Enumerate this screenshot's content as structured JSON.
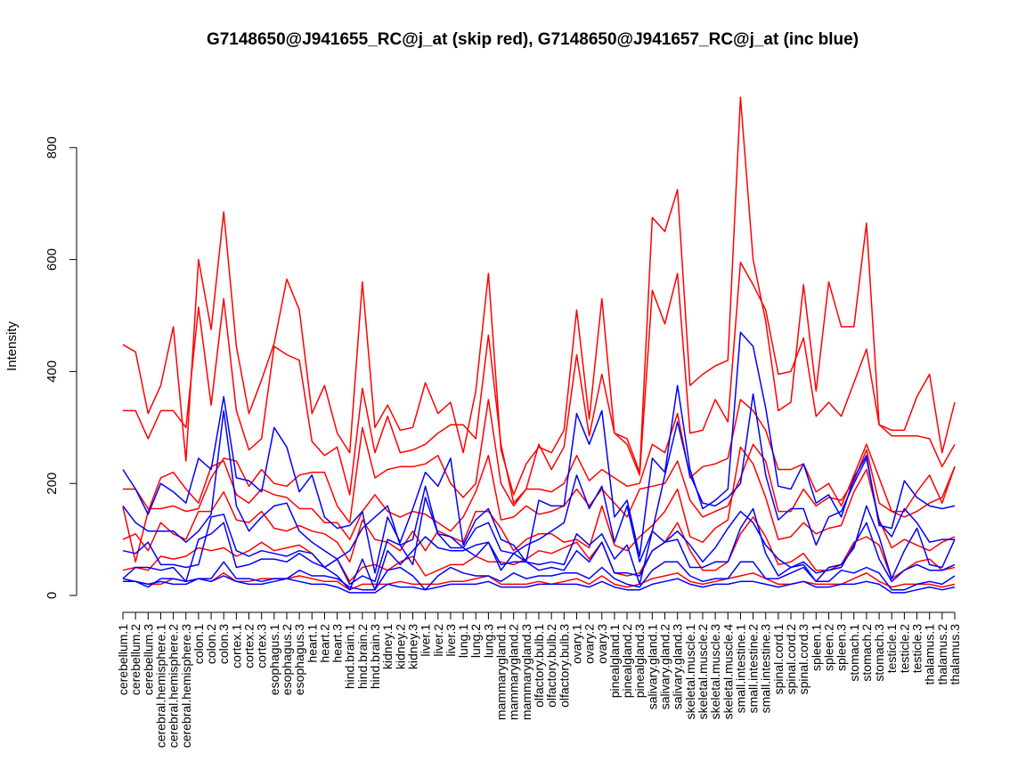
{
  "chart_data": {
    "type": "line",
    "title": "G7148650@J941655_RC@j_at (skip red), G7148650@J941657_RC@j_at (inc blue)",
    "xlabel": "",
    "ylabel": "Intensity",
    "ylim": [
      0,
      900
    ],
    "yticks": [
      0,
      200,
      400,
      600,
      800
    ],
    "grid": false,
    "legend": "none",
    "colors": {
      "skip": "#ff0000",
      "inc": "#0000ff"
    },
    "categories": [
      "cerebellum.1",
      "cerebellum.2",
      "cerebellum.3",
      "cerebral.hemisphere.1",
      "cerebral.hemisphere.2",
      "cerebral.hemisphere.3",
      "colon.1",
      "colon.2",
      "colon.3",
      "cortex.1",
      "cortex.2",
      "cortex.3",
      "esophagus.1",
      "esophagus.2",
      "esophagus.3",
      "heart.1",
      "heart.2",
      "heart.3",
      "hind.brain.1",
      "hind.brain.2",
      "hind.brain.3",
      "kidney.1",
      "kidney.2",
      "kidney.3",
      "liver.1",
      "liver.2",
      "liver.3",
      "lung.1",
      "lung.2",
      "lung.3",
      "mammarygland.1",
      "mammarygland.2",
      "mammarygland.3",
      "olfactory.bulb.1",
      "olfactory.bulb.2",
      "olfactory.bulb.3",
      "ovary.1",
      "ovary.2",
      "ovary.3",
      "pinealgland.1",
      "pinealgland.2",
      "pinealgland.3",
      "salivary.gland.1",
      "salivary.gland.2",
      "salivary.gland.3",
      "skeletal.muscle.1",
      "skeletal.muscle.2",
      "skeletal.muscle.3",
      "skeletal.muscle.4",
      "small.intestine.1",
      "small.intestine.2",
      "small.intestine.3",
      "spinal.cord.1",
      "spinal.cord.2",
      "spinal.cord.3",
      "spleen.1",
      "spleen.2",
      "spleen.3",
      "stomach.1",
      "stomach.2",
      "stomach.3",
      "testicle.1",
      "testicle.2",
      "testicle.3",
      "thalamus.1",
      "thalamus.2",
      "thalamus.3"
    ],
    "series": [
      {
        "group": "skip",
        "values": [
          448,
          435,
          325,
          375,
          480,
          240,
          600,
          475,
          685,
          445,
          325,
          385,
          450,
          565,
          510,
          325,
          375,
          290,
          255,
          560,
          300,
          340,
          295,
          300,
          380,
          325,
          345,
          255,
          365,
          575,
          260,
          180,
          235,
          265,
          255,
          295,
          510,
          315,
          530,
          290,
          280,
          220,
          675,
          650,
          725,
          375,
          395,
          410,
          420,
          890,
          600,
          490,
          330,
          345,
          555,
          365,
          560,
          480,
          480,
          665,
          305,
          295,
          295,
          355,
          395,
          255,
          345
        ]
      },
      {
        "group": "skip",
        "values": [
          330,
          330,
          280,
          330,
          330,
          300,
          515,
          340,
          530,
          330,
          260,
          280,
          445,
          430,
          420,
          275,
          250,
          265,
          180,
          370,
          255,
          320,
          255,
          260,
          270,
          290,
          305,
          305,
          280,
          465,
          270,
          165,
          190,
          270,
          225,
          265,
          430,
          285,
          395,
          290,
          270,
          215,
          545,
          485,
          575,
          290,
          295,
          350,
          310,
          595,
          555,
          510,
          395,
          400,
          460,
          320,
          345,
          320,
          380,
          440,
          305,
          285,
          285,
          285,
          280,
          230,
          270
        ]
      },
      {
        "group": "skip",
        "values": [
          190,
          190,
          155,
          155,
          160,
          150,
          155,
          210,
          245,
          240,
          195,
          225,
          200,
          195,
          215,
          220,
          220,
          160,
          130,
          300,
          210,
          225,
          230,
          230,
          235,
          250,
          200,
          175,
          200,
          350,
          200,
          160,
          190,
          190,
          185,
          200,
          250,
          205,
          225,
          210,
          195,
          200,
          270,
          255,
          325,
          210,
          230,
          235,
          245,
          350,
          330,
          295,
          225,
          225,
          235,
          185,
          200,
          160,
          215,
          270,
          210,
          150,
          150,
          185,
          215,
          165,
          230
        ]
      },
      {
        "group": "skip",
        "values": [
          158,
          60,
          150,
          210,
          220,
          190,
          165,
          230,
          240,
          180,
          165,
          190,
          180,
          175,
          155,
          155,
          130,
          130,
          100,
          150,
          180,
          150,
          140,
          150,
          145,
          130,
          115,
          140,
          185,
          250,
          135,
          140,
          160,
          145,
          150,
          160,
          190,
          160,
          190,
          165,
          140,
          190,
          195,
          200,
          240,
          170,
          140,
          150,
          160,
          210,
          270,
          240,
          150,
          150,
          190,
          160,
          175,
          170,
          205,
          260,
          165,
          150,
          140,
          150,
          165,
          175,
          230
        ]
      },
      {
        "group": "skip",
        "values": [
          100,
          110,
          80,
          130,
          110,
          100,
          150,
          150,
          185,
          135,
          130,
          150,
          120,
          115,
          125,
          115,
          110,
          95,
          60,
          135,
          100,
          95,
          80,
          115,
          80,
          115,
          105,
          95,
          150,
          150,
          120,
          80,
          100,
          110,
          110,
          95,
          100,
          85,
          160,
          90,
          80,
          105,
          125,
          150,
          190,
          105,
          95,
          120,
          135,
          265,
          235,
          175,
          100,
          105,
          130,
          110,
          120,
          125,
          185,
          225,
          135,
          85,
          100,
          90,
          80,
          95,
          105
        ]
      },
      {
        "group": "skip",
        "values": [
          45,
          50,
          45,
          70,
          65,
          70,
          85,
          80,
          85,
          70,
          80,
          95,
          80,
          85,
          90,
          75,
          50,
          65,
          25,
          50,
          55,
          45,
          60,
          70,
          35,
          45,
          55,
          55,
          70,
          60,
          60,
          55,
          65,
          80,
          75,
          85,
          95,
          65,
          95,
          40,
          35,
          40,
          80,
          95,
          130,
          80,
          45,
          45,
          60,
          110,
          140,
          105,
          55,
          60,
          75,
          45,
          45,
          55,
          95,
          105,
          90,
          30,
          45,
          60,
          65,
          45,
          50
        ]
      },
      {
        "group": "skip",
        "values": [
          25,
          25,
          20,
          20,
          30,
          25,
          30,
          25,
          40,
          25,
          25,
          30,
          30,
          30,
          35,
          30,
          25,
          25,
          10,
          20,
          20,
          20,
          25,
          20,
          20,
          20,
          25,
          25,
          30,
          35,
          20,
          20,
          20,
          25,
          20,
          25,
          30,
          20,
          35,
          20,
          15,
          20,
          30,
          35,
          40,
          25,
          20,
          25,
          30,
          35,
          40,
          30,
          20,
          20,
          25,
          20,
          20,
          20,
          30,
          40,
          25,
          15,
          20,
          20,
          20,
          15,
          20
        ]
      },
      {
        "group": "inc",
        "values": [
          225,
          190,
          145,
          200,
          185,
          165,
          245,
          225,
          355,
          210,
          205,
          185,
          300,
          265,
          185,
          215,
          140,
          120,
          125,
          150,
          40,
          140,
          95,
          155,
          220,
          195,
          245,
          90,
          135,
          155,
          100,
          90,
          60,
          170,
          160,
          160,
          325,
          270,
          330,
          140,
          170,
          70,
          245,
          220,
          375,
          225,
          155,
          170,
          190,
          470,
          445,
          335,
          195,
          190,
          235,
          165,
          180,
          140,
          210,
          250,
          125,
          120,
          205,
          175,
          160,
          155,
          160
        ]
      },
      {
        "group": "inc",
        "values": [
          160,
          130,
          115,
          115,
          115,
          95,
          115,
          145,
          330,
          160,
          115,
          140,
          160,
          165,
          115,
          95,
          80,
          65,
          80,
          120,
          140,
          160,
          90,
          100,
          195,
          110,
          105,
          85,
          120,
          130,
          80,
          75,
          90,
          100,
          115,
          130,
          215,
          155,
          195,
          95,
          160,
          60,
          115,
          215,
          310,
          215,
          165,
          160,
          175,
          200,
          360,
          215,
          135,
          155,
          155,
          90,
          140,
          150,
          200,
          245,
          130,
          105,
          155,
          130,
          95,
          100,
          100
        ]
      },
      {
        "group": "inc",
        "values": [
          80,
          75,
          95,
          55,
          55,
          50,
          55,
          140,
          145,
          80,
          70,
          80,
          75,
          70,
          80,
          75,
          50,
          65,
          20,
          35,
          25,
          100,
          90,
          55,
          175,
          110,
          85,
          85,
          70,
          95,
          45,
          75,
          60,
          55,
          60,
          55,
          110,
          90,
          110,
          65,
          90,
          20,
          115,
          95,
          115,
          90,
          60,
          85,
          120,
          150,
          130,
          90,
          65,
          50,
          55,
          25,
          50,
          55,
          85,
          160,
          105,
          30,
          80,
          120,
          55,
          50,
          100
        ]
      },
      {
        "group": "inc",
        "values": [
          30,
          50,
          50,
          45,
          50,
          25,
          100,
          110,
          130,
          50,
          55,
          65,
          65,
          60,
          75,
          60,
          50,
          35,
          10,
          65,
          10,
          80,
          55,
          80,
          105,
          85,
          80,
          80,
          90,
          95,
          55,
          60,
          60,
          45,
          50,
          45,
          80,
          60,
          95,
          40,
          40,
          35,
          80,
          95,
          100,
          50,
          50,
          60,
          60,
          120,
          155,
          75,
          35,
          50,
          60,
          40,
          45,
          50,
          90,
          130,
          65,
          25,
          45,
          55,
          45,
          45,
          55
        ]
      },
      {
        "group": "inc",
        "values": [
          25,
          25,
          15,
          30,
          30,
          25,
          30,
          30,
          60,
          30,
          30,
          25,
          30,
          30,
          45,
          35,
          35,
          30,
          15,
          10,
          10,
          45,
          50,
          35,
          10,
          35,
          50,
          40,
          35,
          35,
          25,
          40,
          30,
          35,
          35,
          40,
          40,
          30,
          50,
          30,
          20,
          15,
          45,
          60,
          60,
          35,
          25,
          30,
          30,
          60,
          60,
          30,
          30,
          40,
          50,
          25,
          25,
          45,
          40,
          50,
          40,
          10,
          10,
          20,
          25,
          20,
          35
        ]
      },
      {
        "group": "inc",
        "values": [
          30,
          25,
          20,
          25,
          20,
          20,
          30,
          25,
          35,
          25,
          20,
          20,
          25,
          30,
          25,
          20,
          20,
          15,
          5,
          5,
          5,
          20,
          15,
          15,
          10,
          15,
          20,
          20,
          20,
          25,
          15,
          15,
          15,
          20,
          20,
          20,
          20,
          15,
          25,
          15,
          10,
          10,
          20,
          25,
          30,
          20,
          15,
          20,
          20,
          25,
          25,
          20,
          15,
          20,
          25,
          15,
          15,
          20,
          20,
          25,
          20,
          5,
          5,
          10,
          15,
          10,
          15
        ]
      }
    ]
  }
}
